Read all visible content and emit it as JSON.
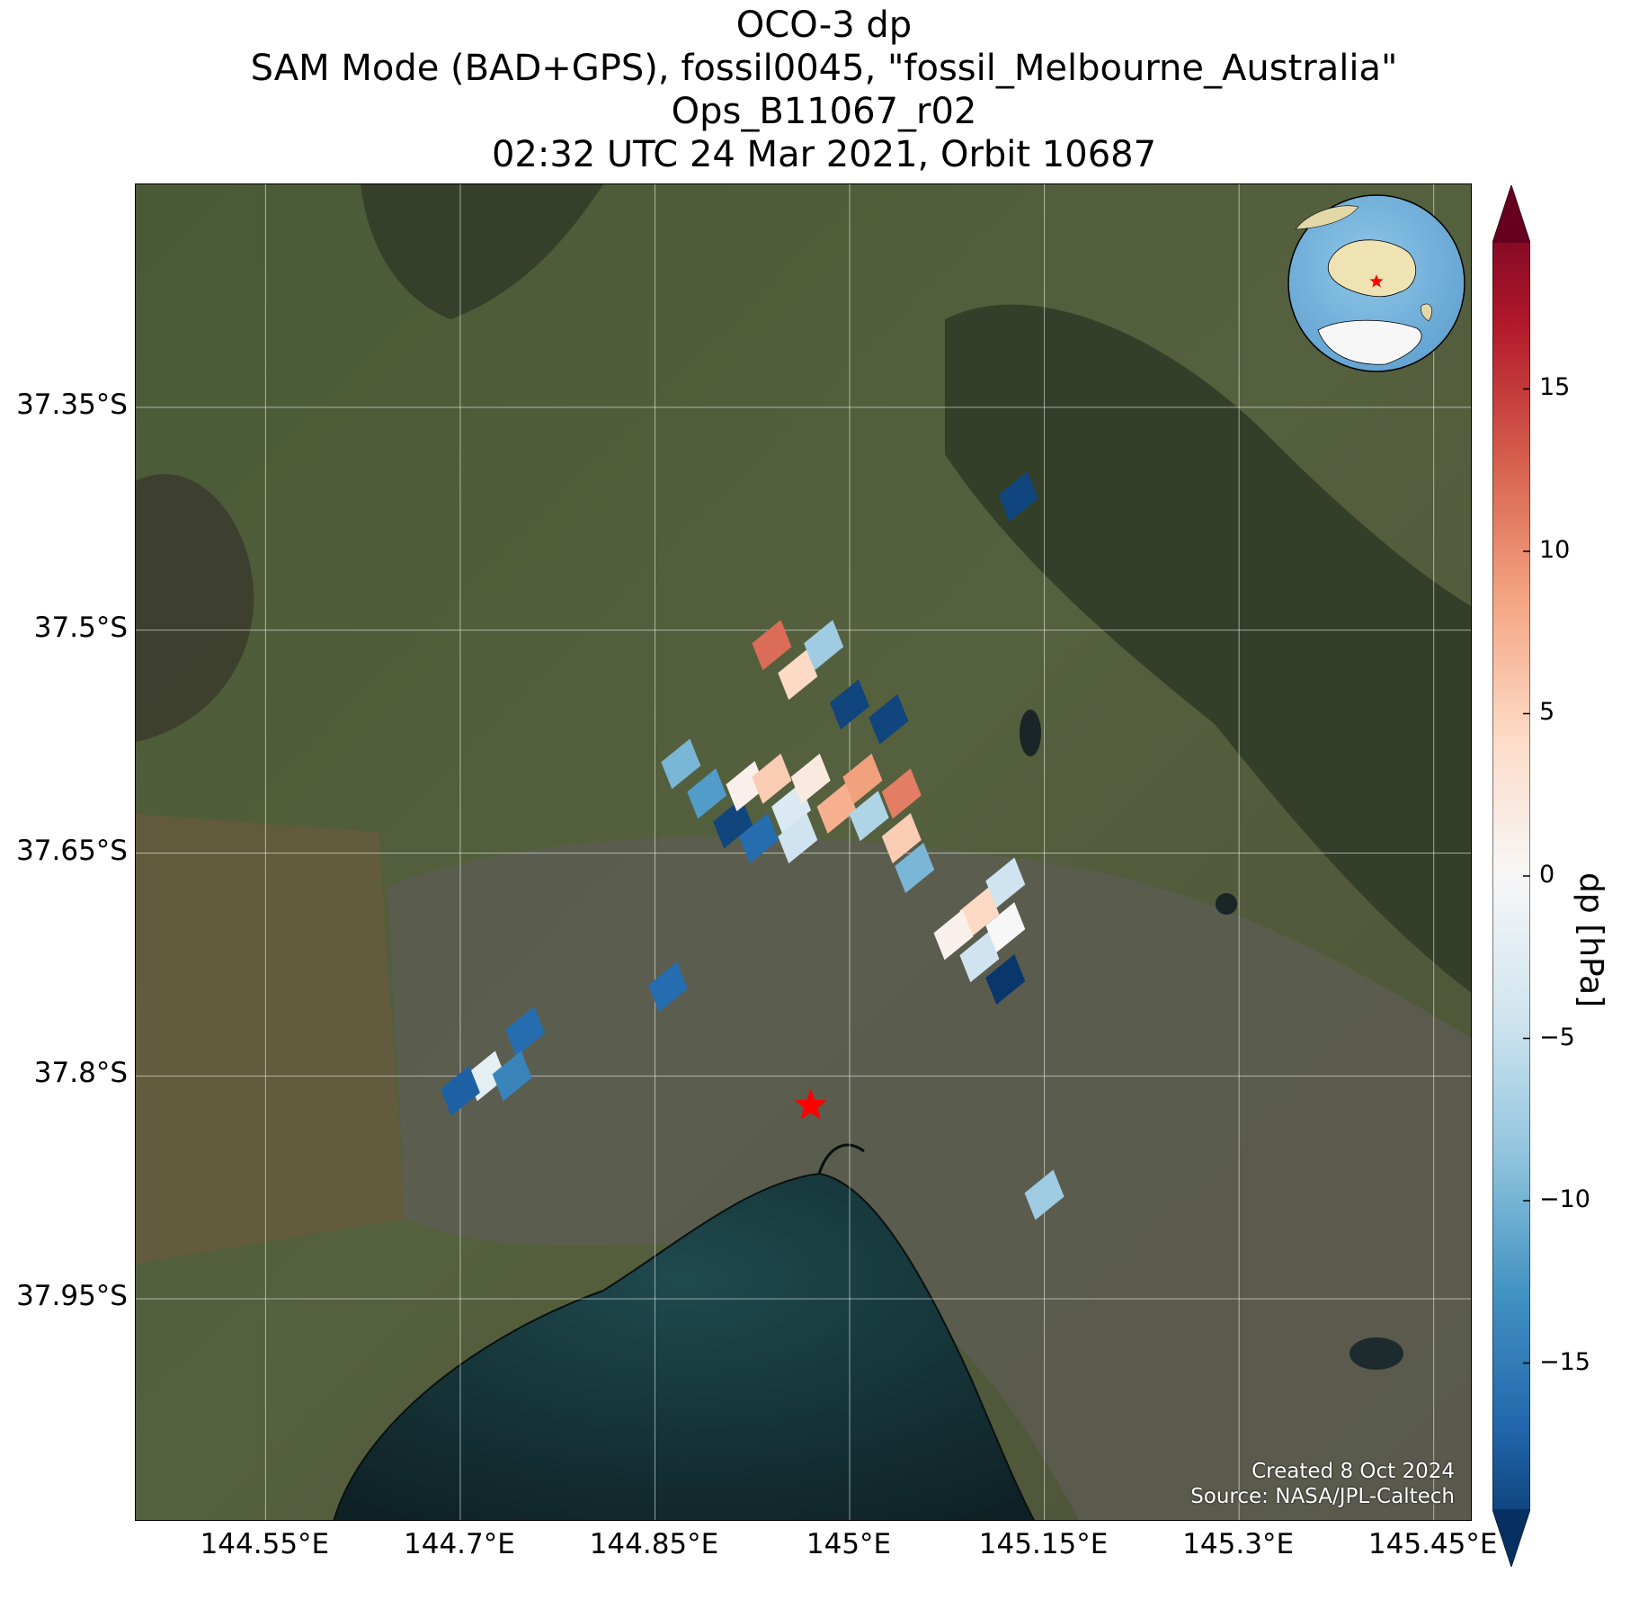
{
  "title": {
    "line1": "OCO-3 dp",
    "line2": "SAM Mode (BAD+GPS), fossil0045, \"fossil_Melbourne_Australia\"",
    "line3": "Ops_B11067_r02",
    "line4": "02:32 UTC 24 Mar 2021, Orbit 10687"
  },
  "map": {
    "lon_range": [
      144.45,
      145.48
    ],
    "lat_range": [
      -38.1,
      -37.2
    ],
    "x_ticks": [
      {
        "value": 144.55,
        "label": "144.55°E"
      },
      {
        "value": 144.7,
        "label": "144.7°E"
      },
      {
        "value": 144.85,
        "label": "144.85°E"
      },
      {
        "value": 145.0,
        "label": "145°E"
      },
      {
        "value": 145.15,
        "label": "145.15°E"
      },
      {
        "value": 145.3,
        "label": "145.3°E"
      },
      {
        "value": 145.45,
        "label": "145.45°E"
      }
    ],
    "y_ticks": [
      {
        "value": -37.35,
        "label": "37.35°S"
      },
      {
        "value": -37.5,
        "label": "37.5°S"
      },
      {
        "value": -37.65,
        "label": "37.65°S"
      },
      {
        "value": -37.8,
        "label": "37.8°S"
      },
      {
        "value": -37.95,
        "label": "37.95°S"
      }
    ],
    "target": {
      "name": "fossil_Melbourne_Australia",
      "lon": 144.97,
      "lat": -37.82,
      "marker": "star",
      "color": "#ff0000"
    },
    "footer": {
      "created": "Created 8 Oct 2024",
      "source": "Source: NASA/JPL-Caltech"
    },
    "inset": {
      "type": "globe",
      "marker_color": "#ff0000"
    }
  },
  "chart_data": {
    "type": "heatmap",
    "variable": "dp",
    "units": "hPa",
    "colorbar": {
      "label": "dp [hPa]",
      "vmin": -19.5,
      "vmax": 19.5,
      "ticks": [
        -15,
        -10,
        -5,
        0,
        5,
        10,
        15
      ],
      "tick_labels": [
        "−15",
        "−10",
        "−5",
        "0",
        "5",
        "10",
        "15"
      ],
      "cmap": "RdBu_r",
      "extend": "both"
    },
    "soundings": [
      {
        "lon": 145.13,
        "lat": -37.41,
        "dp": -18
      },
      {
        "lon": 144.94,
        "lat": -37.51,
        "dp": 11
      },
      {
        "lon": 144.96,
        "lat": -37.53,
        "dp": 4
      },
      {
        "lon": 144.98,
        "lat": -37.51,
        "dp": -7
      },
      {
        "lon": 145.0,
        "lat": -37.55,
        "dp": -18
      },
      {
        "lon": 145.03,
        "lat": -37.56,
        "dp": -18
      },
      {
        "lon": 144.87,
        "lat": -37.59,
        "dp": -9
      },
      {
        "lon": 144.89,
        "lat": -37.61,
        "dp": -11
      },
      {
        "lon": 144.91,
        "lat": -37.63,
        "dp": -18
      },
      {
        "lon": 144.92,
        "lat": -37.605,
        "dp": 1
      },
      {
        "lon": 144.94,
        "lat": -37.6,
        "dp": 5
      },
      {
        "lon": 144.93,
        "lat": -37.64,
        "dp": -15
      },
      {
        "lon": 144.955,
        "lat": -37.62,
        "dp": -3
      },
      {
        "lon": 144.97,
        "lat": -37.6,
        "dp": 2
      },
      {
        "lon": 144.96,
        "lat": -37.64,
        "dp": -4
      },
      {
        "lon": 144.99,
        "lat": -37.62,
        "dp": 7
      },
      {
        "lon": 145.01,
        "lat": -37.6,
        "dp": 8
      },
      {
        "lon": 145.015,
        "lat": -37.625,
        "dp": -6
      },
      {
        "lon": 145.04,
        "lat": -37.61,
        "dp": 10
      },
      {
        "lon": 145.04,
        "lat": -37.64,
        "dp": 5
      },
      {
        "lon": 145.05,
        "lat": -37.66,
        "dp": -9
      },
      {
        "lon": 145.12,
        "lat": -37.67,
        "dp": -4
      },
      {
        "lon": 145.1,
        "lat": -37.69,
        "dp": 4
      },
      {
        "lon": 145.08,
        "lat": -37.705,
        "dp": 1
      },
      {
        "lon": 145.12,
        "lat": -37.7,
        "dp": 0
      },
      {
        "lon": 145.1,
        "lat": -37.72,
        "dp": -4
      },
      {
        "lon": 145.12,
        "lat": -37.735,
        "dp": -19
      },
      {
        "lon": 144.86,
        "lat": -37.74,
        "dp": -15
      },
      {
        "lon": 144.75,
        "lat": -37.77,
        "dp": -15
      },
      {
        "lon": 144.72,
        "lat": -37.8,
        "dp": -2
      },
      {
        "lon": 144.74,
        "lat": -37.8,
        "dp": -13
      },
      {
        "lon": 144.7,
        "lat": -37.81,
        "dp": -16
      },
      {
        "lon": 145.15,
        "lat": -37.88,
        "dp": -7
      }
    ]
  }
}
